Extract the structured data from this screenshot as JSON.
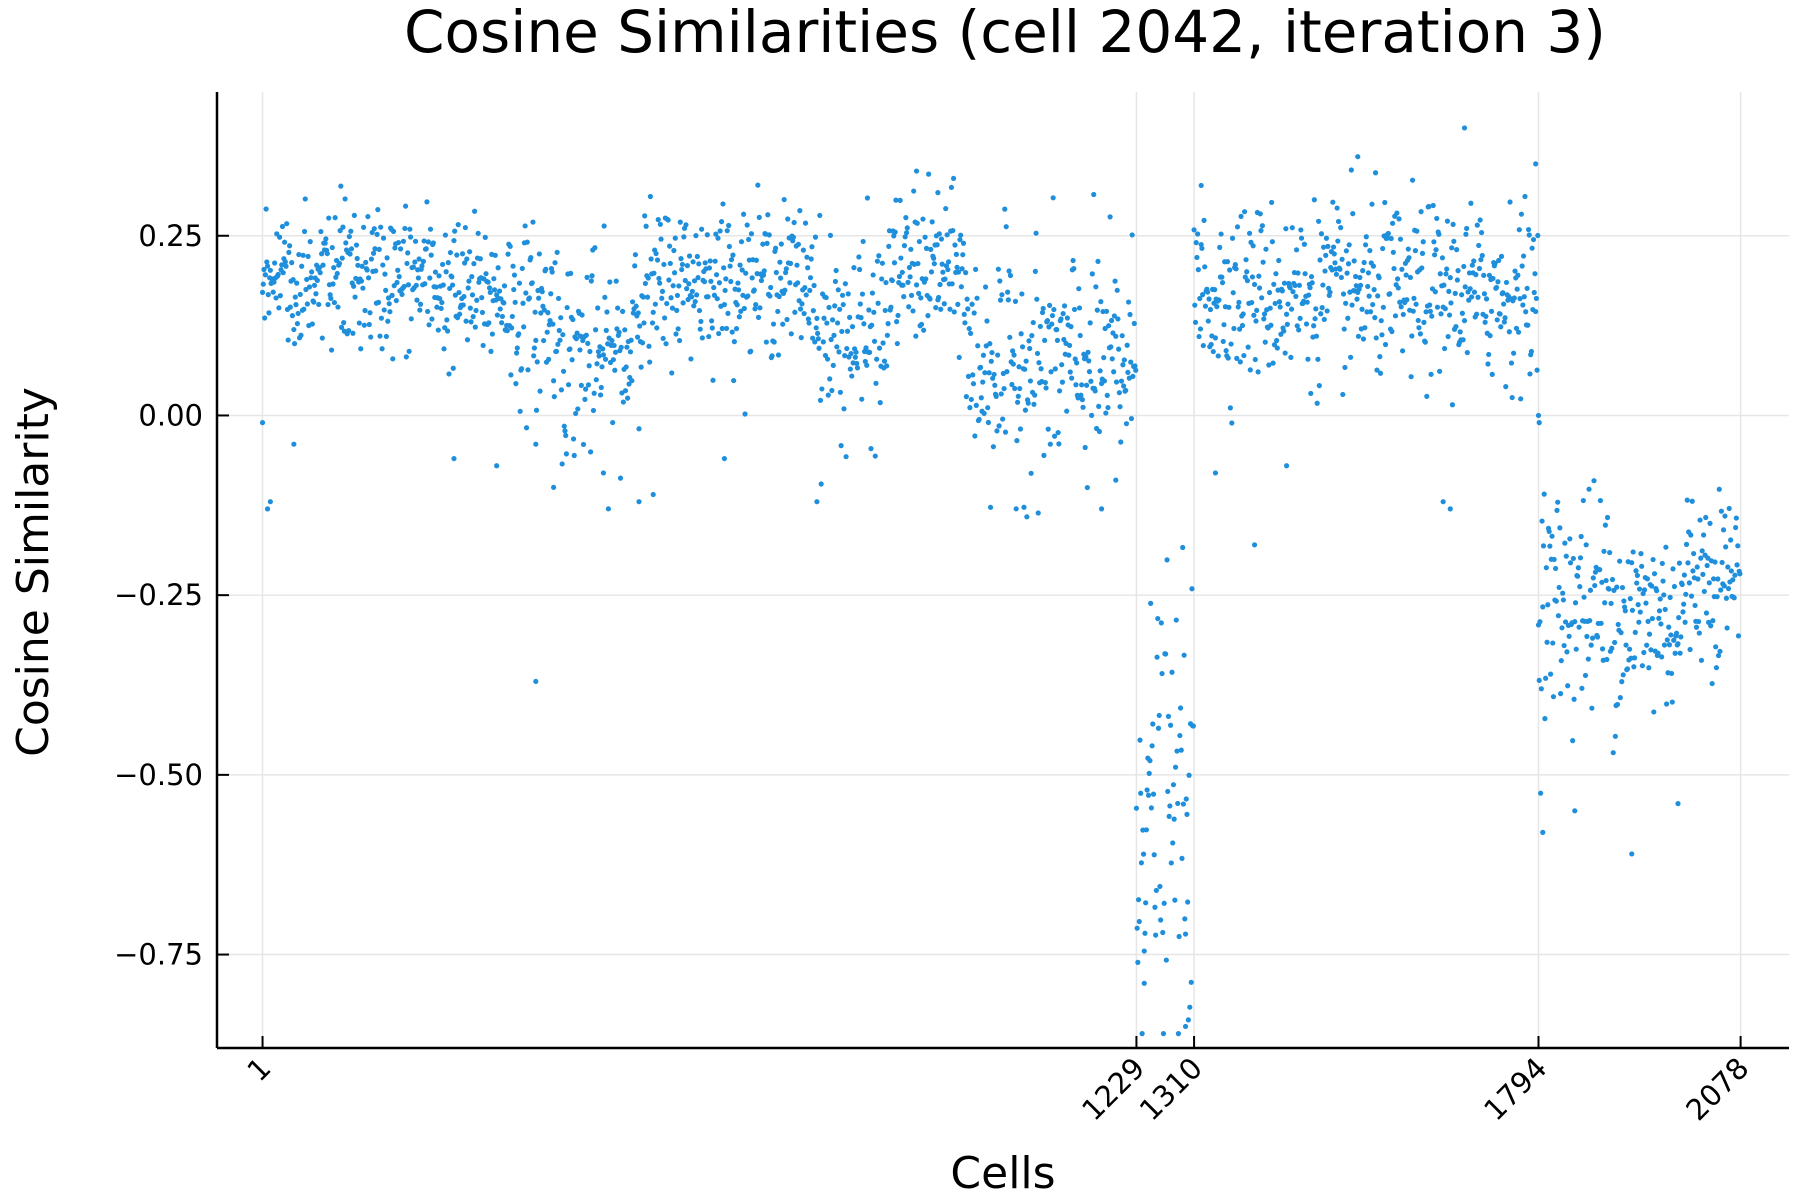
{
  "chart_data": {
    "type": "scatter",
    "title": "Cosine Similarities (cell 2042, iteration 3)",
    "xlabel": "Cells",
    "ylabel": "Cosine Similarity",
    "xlim": [
      -63,
      2146
    ],
    "ylim": [
      -0.88,
      0.45
    ],
    "x_ticks": [
      1,
      1229,
      1310,
      1794,
      2078
    ],
    "x_tick_labels": [
      "1",
      "1229",
      "1310",
      "1794",
      "2078"
    ],
    "y_ticks": [
      0.25,
      0.0,
      -0.25,
      -0.5,
      -0.75
    ],
    "y_tick_labels": [
      "0.25",
      "0.00",
      "−0.25",
      "−0.50",
      "−0.75"
    ],
    "grid": true,
    "legend": "none",
    "marker_color": "#1f8fdc",
    "series": [
      {
        "segments": [
          {
            "x_start": 1,
            "x_end": 40,
            "mean": 0.2,
            "sd": 0.04
          },
          {
            "x_start": 40,
            "x_end": 140,
            "mean": 0.19,
            "sd": 0.05
          },
          {
            "x_start": 140,
            "x_end": 250,
            "mean": 0.19,
            "sd": 0.05
          },
          {
            "x_start": 250,
            "x_end": 350,
            "mean": 0.17,
            "sd": 0.05
          },
          {
            "x_start": 350,
            "x_end": 420,
            "mean": 0.14,
            "sd": 0.06
          },
          {
            "x_start": 420,
            "x_end": 520,
            "mean": 0.08,
            "sd": 0.07
          },
          {
            "x_start": 520,
            "x_end": 570,
            "mean": 0.17,
            "sd": 0.06
          },
          {
            "x_start": 570,
            "x_end": 780,
            "mean": 0.19,
            "sd": 0.05
          },
          {
            "x_start": 780,
            "x_end": 880,
            "mean": 0.11,
            "sd": 0.07
          },
          {
            "x_start": 880,
            "x_end": 990,
            "mean": 0.2,
            "sd": 0.05
          },
          {
            "x_start": 990,
            "x_end": 1229,
            "mean": 0.07,
            "sd": 0.08
          },
          {
            "x_start": 1229,
            "x_end": 1310,
            "mean": -0.55,
            "sd": 0.14
          },
          {
            "x_start": 1310,
            "x_end": 1794,
            "mean": 0.17,
            "sd": 0.06
          },
          {
            "x_start": 1794,
            "x_end": 1900,
            "mean": -0.26,
            "sd": 0.08
          },
          {
            "x_start": 1900,
            "x_end": 2000,
            "mean": -0.28,
            "sd": 0.07
          },
          {
            "x_start": 2000,
            "x_end": 2078,
            "mean": -0.22,
            "sd": 0.06
          }
        ],
        "outliers": [
          [
            1,
            -0.01
          ],
          [
            8,
            -0.13
          ],
          [
            12,
            -0.12
          ],
          [
            45,
            -0.04
          ],
          [
            270,
            -0.06
          ],
          [
            330,
            -0.07
          ],
          [
            385,
            -0.04
          ],
          [
            385,
            -0.37
          ],
          [
            410,
            -0.1
          ],
          [
            480,
            -0.08
          ],
          [
            530,
            -0.12
          ],
          [
            550,
            -0.11
          ],
          [
            650,
            -0.06
          ],
          [
            780,
            -0.12
          ],
          [
            920,
            0.34
          ],
          [
            950,
            0.31
          ],
          [
            1180,
            -0.13
          ],
          [
            1200,
            -0.09
          ],
          [
            1320,
            0.32
          ],
          [
            1340,
            -0.08
          ],
          [
            1395,
            -0.18
          ],
          [
            1440,
            -0.07
          ],
          [
            1540,
            0.36
          ],
          [
            1690,
            0.4
          ],
          [
            1660,
            -0.12
          ],
          [
            1670,
            -0.13
          ],
          [
            1790,
            0.35
          ],
          [
            1794,
            0.0
          ],
          [
            1795,
            -0.01
          ],
          [
            1845,
            -0.55
          ],
          [
            1800,
            -0.58
          ],
          [
            1925,
            -0.61
          ],
          [
            1990,
            -0.54
          ],
          [
            1298,
            -0.85
          ],
          [
            1240,
            -0.79
          ]
        ]
      }
    ]
  }
}
